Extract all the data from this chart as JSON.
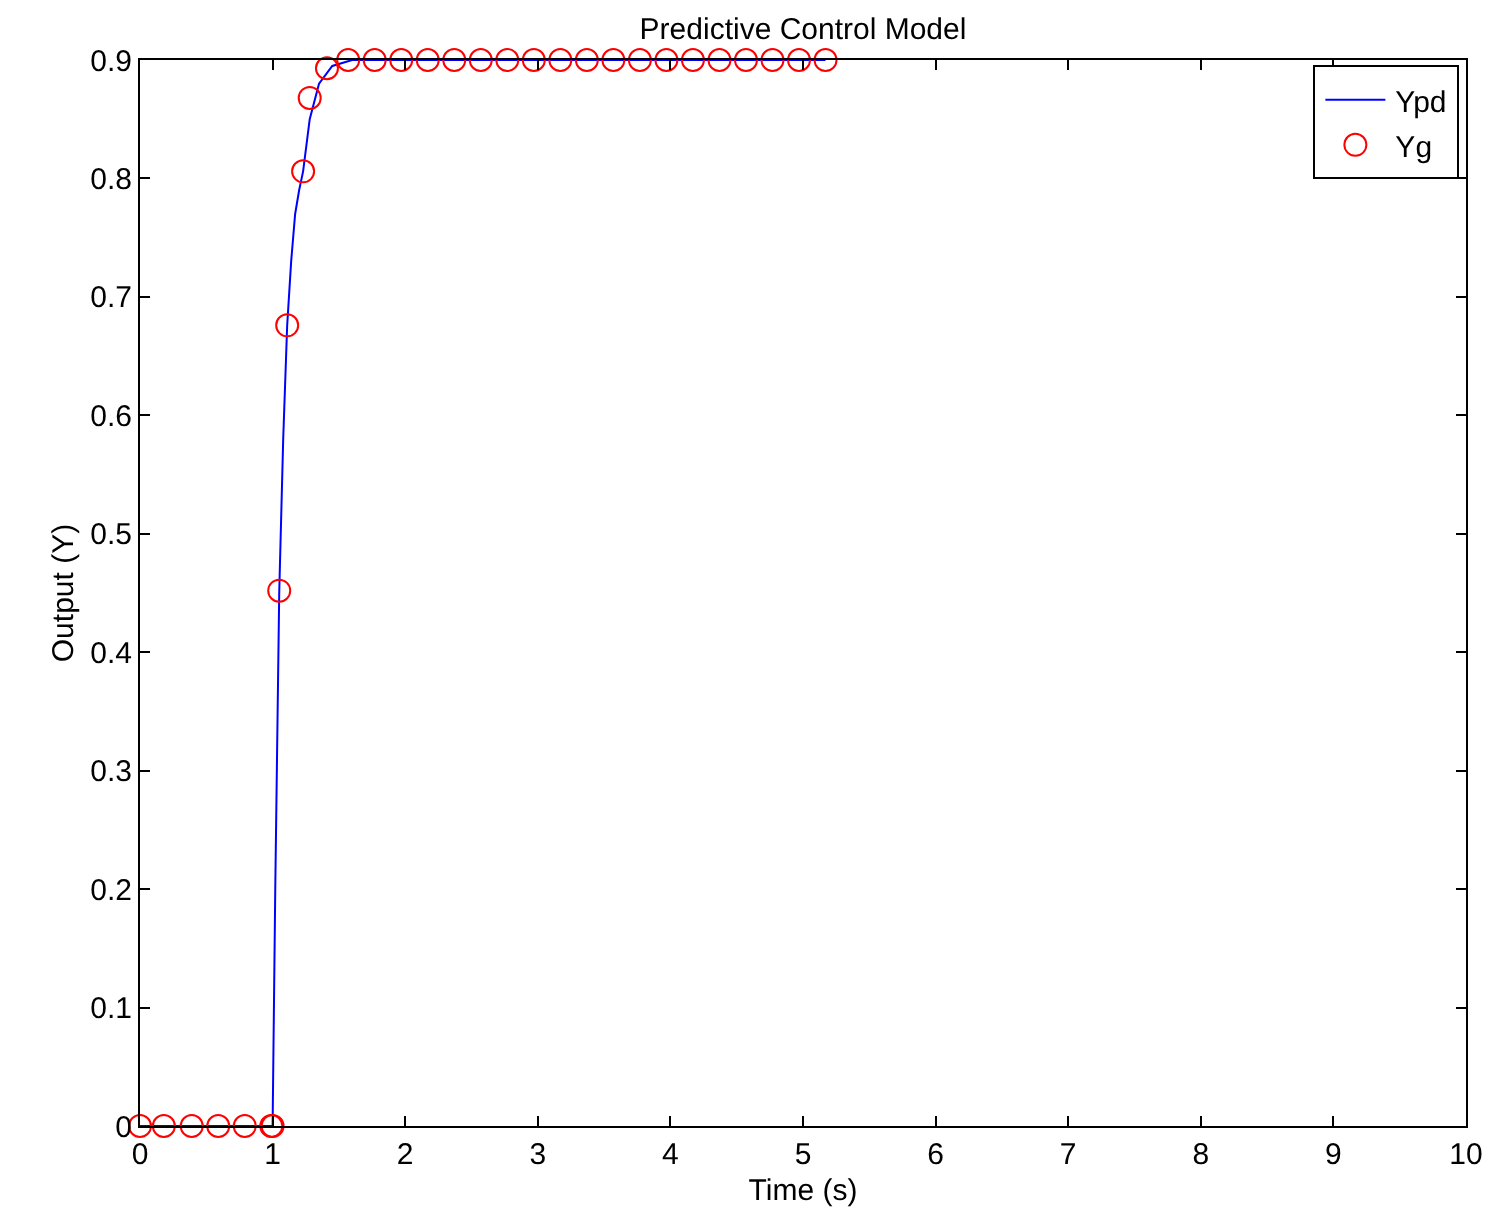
{
  "chart_data": {
    "type": "line",
    "title": "Predictive Control Model",
    "xlabel": "Time (s)",
    "ylabel": "Output (Y)",
    "xlim": [
      0,
      10
    ],
    "xticks": [
      0,
      1,
      2,
      3,
      4,
      5,
      6,
      7,
      8,
      9,
      10
    ],
    "ylim": [
      0,
      0.9
    ],
    "yticks": [
      0,
      0.1,
      0.2,
      0.3,
      0.4,
      0.5,
      0.6,
      0.7,
      0.8,
      0.9
    ],
    "legend": "top right",
    "series": [
      {
        "name": "Ypd",
        "color": "#0000ff",
        "marker": "none",
        "line_style": "solid",
        "x": [
          0,
          0.5,
          1.0,
          1.02,
          1.05,
          1.08,
          1.11,
          1.14,
          1.17,
          1.2,
          1.23,
          1.28,
          1.35,
          1.45,
          1.6,
          2.0,
          3.0,
          4.0,
          5.17
        ],
        "values": [
          0,
          0,
          0,
          0.2,
          0.45,
          0.58,
          0.676,
          0.73,
          0.77,
          0.79,
          0.806,
          0.85,
          0.88,
          0.895,
          0.9,
          0.9,
          0.9,
          0.9,
          0.9
        ]
      },
      {
        "name": "Yg",
        "type": "scatter",
        "color": "#ff0000",
        "marker": "circle",
        "x": [
          0,
          0.18,
          0.39,
          0.59,
          0.79,
          0.99,
          1.0,
          1.05,
          1.11,
          1.23,
          1.28,
          1.41,
          1.57,
          1.77,
          1.97,
          2.17,
          2.37,
          2.57,
          2.77,
          2.97,
          3.17,
          3.37,
          3.57,
          3.77,
          3.97,
          4.17,
          4.37,
          4.57,
          4.77,
          4.97,
          5.17
        ],
        "values": [
          0,
          0,
          0,
          0,
          0,
          0,
          0,
          0.452,
          0.676,
          0.806,
          0.868,
          0.893,
          0.9,
          0.9,
          0.9,
          0.9,
          0.9,
          0.9,
          0.9,
          0.9,
          0.9,
          0.9,
          0.9,
          0.9,
          0.9,
          0.9,
          0.9,
          0.9,
          0.9,
          0.9,
          0.9
        ]
      }
    ]
  }
}
